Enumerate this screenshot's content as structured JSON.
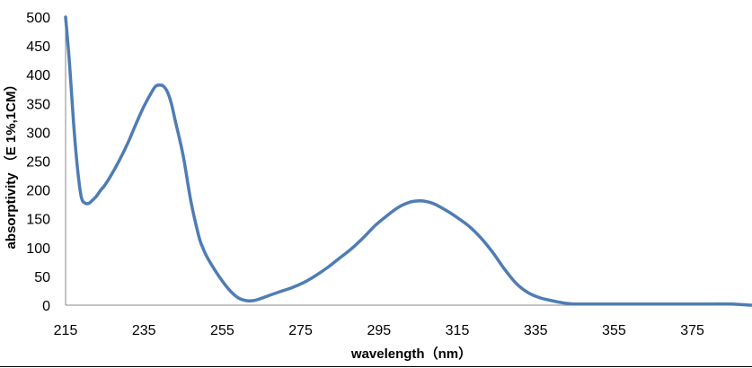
{
  "chart_data": {
    "type": "line",
    "title": "",
    "xlabel": "wavelength（nm）",
    "ylabel": "absorptivity （E 1%,1CM）",
    "xlim": [
      215,
      390
    ],
    "ylim": [
      0,
      500
    ],
    "x_ticks": [
      215,
      235,
      255,
      275,
      295,
      315,
      335,
      355,
      375
    ],
    "y_ticks": [
      0,
      50,
      100,
      150,
      200,
      250,
      300,
      350,
      400,
      450,
      500
    ],
    "grid": false,
    "legend": "none",
    "colors": {
      "line": "#4f7db3",
      "axis": "#8a8a8a",
      "bottom_rule": "#000000"
    },
    "series": [
      {
        "x": [
          215,
          216,
          217,
          218,
          219,
          220,
          221,
          222,
          223,
          224,
          225,
          227,
          229,
          231,
          233,
          235,
          237,
          238,
          239,
          240,
          241,
          242,
          243,
          245,
          247,
          249,
          250,
          251,
          253,
          255,
          257,
          259,
          261,
          263,
          265,
          267,
          270,
          273,
          276,
          279,
          282,
          285,
          288,
          291,
          294,
          297,
          300,
          303,
          305,
          307,
          309,
          311,
          313,
          315,
          318,
          321,
          324,
          327,
          330,
          333,
          336,
          339,
          342,
          345,
          350,
          355,
          360,
          365,
          370,
          375,
          380,
          385,
          390
        ],
        "values": [
          500,
          420,
          320,
          240,
          188,
          177,
          177,
          183,
          190,
          200,
          208,
          230,
          255,
          283,
          315,
          345,
          370,
          380,
          382,
          380,
          370,
          350,
          320,
          260,
          180,
          120,
          100,
          85,
          62,
          42,
          25,
          13,
          8,
          8,
          12,
          17,
          24,
          31,
          40,
          52,
          66,
          82,
          98,
          117,
          138,
          155,
          170,
          179,
          181,
          180,
          176,
          169,
          161,
          152,
          137,
          117,
          92,
          63,
          38,
          22,
          13,
          8,
          4,
          2,
          2,
          2,
          2,
          2,
          2,
          2,
          2,
          2,
          0
        ]
      }
    ]
  }
}
